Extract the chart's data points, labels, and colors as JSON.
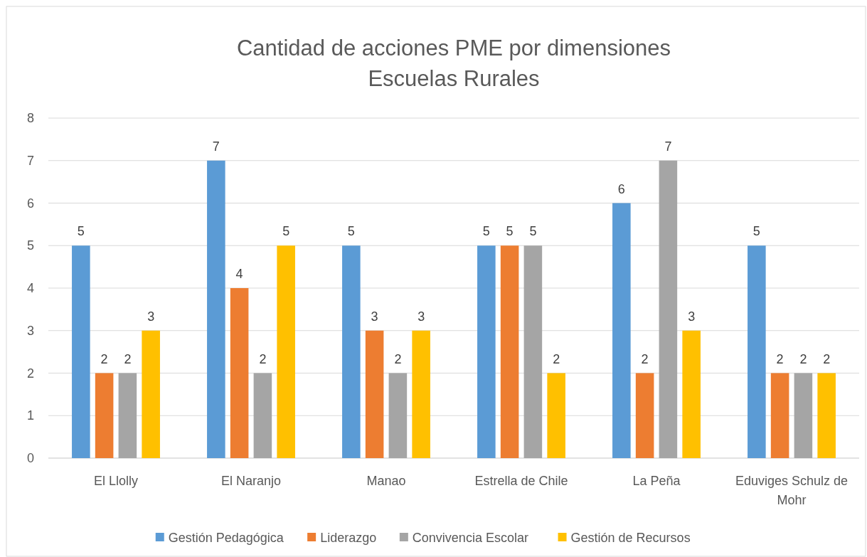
{
  "chart_data": {
    "type": "bar",
    "title": "Cantidad de acciones PME por dimensiones",
    "subtitle": "Escuelas Rurales",
    "categories": [
      "El Llolly",
      "El Naranjo",
      "Manao",
      "Estrella de Chile",
      "La Peña",
      "Eduviges Schulz de Mohr"
    ],
    "series": [
      {
        "name": "Gestión Pedagógica",
        "color": "#5b9bd5",
        "values": [
          5,
          7,
          5,
          5,
          6,
          5
        ]
      },
      {
        "name": "Liderazgo",
        "color": "#ed7d31",
        "values": [
          2,
          4,
          3,
          5,
          2,
          2
        ]
      },
      {
        "name": "Convivencia Escolar",
        "color": "#a5a5a5",
        "values": [
          2,
          2,
          2,
          5,
          7,
          2
        ]
      },
      {
        "name": "Gestión de Recursos",
        "color": "#ffc000",
        "values": [
          3,
          5,
          3,
          2,
          3,
          2
        ]
      }
    ],
    "ylim": [
      0,
      8
    ],
    "yticks": [
      0,
      1,
      2,
      3,
      4,
      5,
      6,
      7,
      8
    ],
    "grid": "y",
    "data_labels": true,
    "legend": "bottom"
  }
}
